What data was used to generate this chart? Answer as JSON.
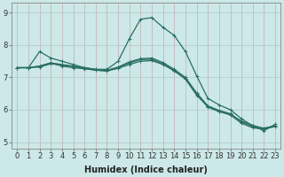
{
  "xlabel": "Humidex (Indice chaleur)",
  "xlim": [
    -0.5,
    23.5
  ],
  "ylim": [
    4.8,
    9.3
  ],
  "xticks": [
    0,
    1,
    2,
    3,
    4,
    5,
    6,
    7,
    8,
    9,
    10,
    11,
    12,
    13,
    14,
    15,
    16,
    17,
    18,
    19,
    20,
    21,
    22,
    23
  ],
  "yticks": [
    5,
    6,
    7,
    8,
    9
  ],
  "bg_color": "#cce8e8",
  "grid_color_v": "#c4b8b8",
  "grid_color_h": "#b8cccc",
  "line_color": "#2a6e62",
  "lines": [
    [
      7.3,
      7.3,
      7.8,
      7.6,
      7.5,
      7.4,
      7.3,
      7.25,
      7.25,
      7.5,
      8.2,
      8.8,
      8.85,
      8.55,
      8.3,
      7.8,
      7.05,
      6.35,
      6.15,
      6.0,
      5.72,
      5.5,
      5.35,
      5.55
    ],
    [
      7.3,
      7.3,
      7.35,
      7.45,
      7.35,
      7.3,
      7.27,
      7.22,
      7.2,
      7.28,
      7.4,
      7.5,
      7.52,
      7.4,
      7.2,
      6.95,
      6.45,
      6.1,
      5.95,
      5.85,
      5.65,
      5.52,
      5.42,
      5.5
    ],
    [
      7.3,
      7.3,
      7.35,
      7.45,
      7.4,
      7.35,
      7.3,
      7.25,
      7.22,
      7.32,
      7.48,
      7.58,
      7.6,
      7.46,
      7.25,
      7.0,
      6.52,
      6.12,
      5.98,
      5.88,
      5.62,
      5.48,
      5.43,
      5.5
    ],
    [
      7.3,
      7.3,
      7.32,
      7.42,
      7.38,
      7.33,
      7.28,
      7.23,
      7.2,
      7.3,
      7.45,
      7.55,
      7.56,
      7.42,
      7.22,
      6.96,
      6.48,
      6.08,
      5.94,
      5.84,
      5.58,
      5.44,
      5.4,
      5.48
    ]
  ],
  "marker": "+",
  "marker_size": 3,
  "line_width": 0.9,
  "font_size_axis": 7,
  "font_size_tick": 6
}
